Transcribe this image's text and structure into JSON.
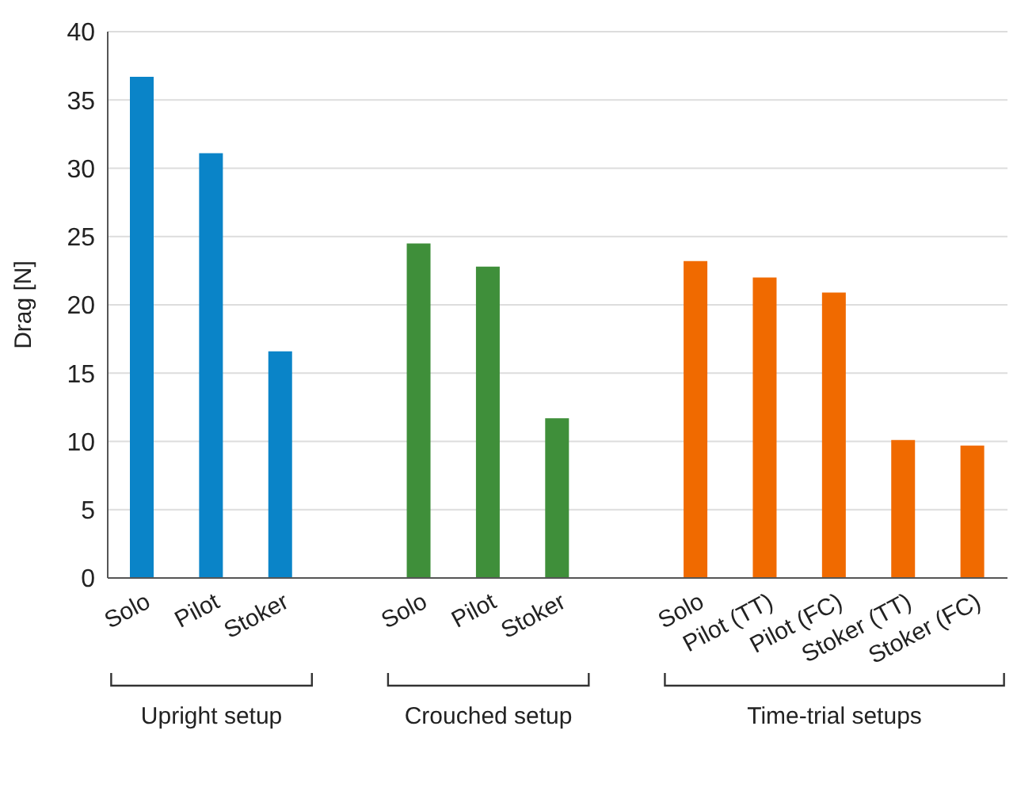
{
  "chart_data": {
    "type": "bar",
    "ylabel": "Drag [N]",
    "categories": [
      "Solo",
      "Pilot",
      "Stoker",
      null,
      "Solo",
      "Pilot",
      "Stoker",
      null,
      "Solo",
      "Pilot (TT)",
      "Pilot (FC)",
      "Stoker (TT)",
      "Stoker (FC)"
    ],
    "values": [
      36.7,
      31.1,
      16.6,
      null,
      24.5,
      22.8,
      11.7,
      null,
      23.2,
      22.0,
      20.9,
      10.1,
      9.7
    ],
    "colors": [
      "#0a84c8",
      "#0a84c8",
      "#0a84c8",
      null,
      "#3f8f3a",
      "#3f8f3a",
      "#3f8f3a",
      null,
      "#f06a00",
      "#f06a00",
      "#f06a00",
      "#f06a00",
      "#f06a00"
    ],
    "ylim": [
      0,
      40
    ],
    "yticks": [
      0,
      5,
      10,
      15,
      20,
      25,
      30,
      35,
      40
    ],
    "grid": "y",
    "annotations": [
      "Upright setup",
      "Crouched setup",
      "Time-trial setups"
    ]
  }
}
